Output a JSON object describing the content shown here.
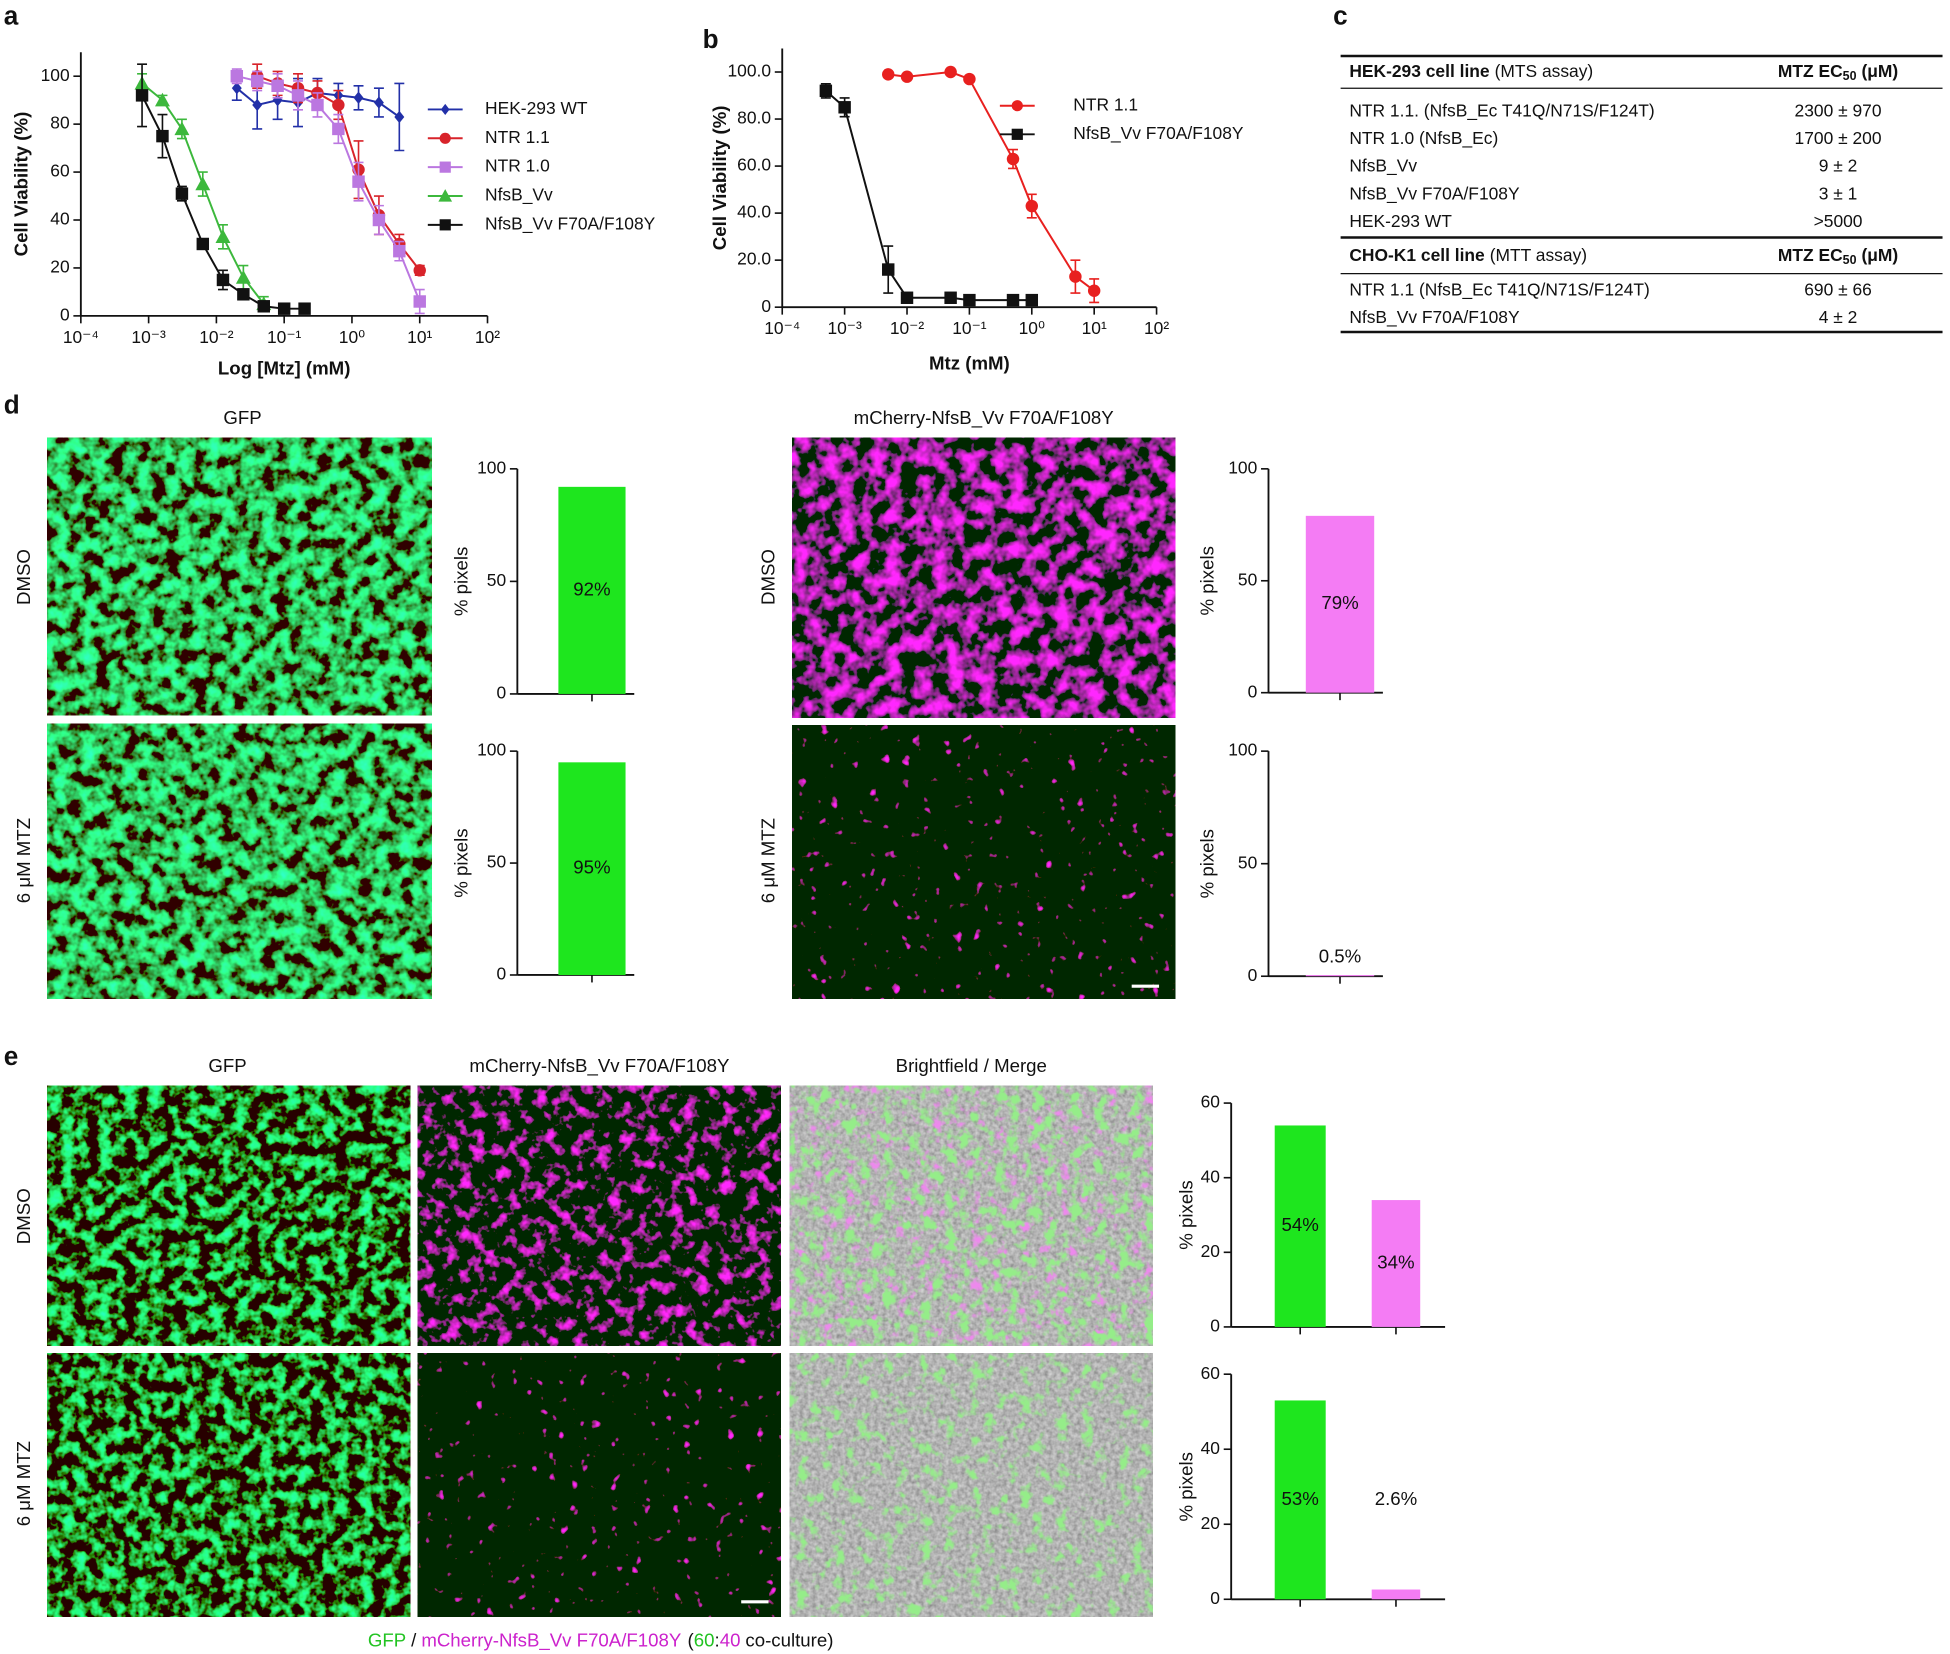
{
  "panel_labels": [
    "a",
    "b",
    "c",
    "d",
    "e"
  ],
  "chart_data": [
    {
      "type": "line",
      "x_label": "Log [Mtz] (mM)",
      "y_label": "Cell Viability (%)",
      "xscale": "log",
      "xlim": [
        0.0001,
        100
      ],
      "xticks": [
        {
          "value": 0.0001,
          "label": "10⁻⁴"
        },
        {
          "value": 0.001,
          "label": "10⁻³"
        },
        {
          "value": 0.01,
          "label": "10⁻²"
        },
        {
          "value": 0.1,
          "label": "10⁻¹"
        },
        {
          "value": 1,
          "label": "10⁰"
        },
        {
          "value": 10,
          "label": "10¹"
        },
        {
          "value": 100,
          "label": "10²"
        }
      ],
      "ylim": [
        0,
        110
      ],
      "yticks": [
        0,
        20,
        40,
        60,
        80,
        100
      ],
      "series": [
        {
          "name": "HEK-293 WT",
          "color": "#2230a8",
          "marker": "diamond",
          "x": [
            0.02,
            0.04,
            0.08,
            0.16,
            0.31,
            0.63,
            1.25,
            2.5,
            5
          ],
          "values": [
            95,
            88,
            90,
            89,
            93,
            92,
            91,
            89,
            83
          ],
          "errors": [
            5,
            10,
            8,
            10,
            6,
            5,
            5,
            6,
            14
          ]
        },
        {
          "name": "NTR 1.1",
          "color": "#d8232a",
          "marker": "circle",
          "x": [
            0.04,
            0.08,
            0.16,
            0.31,
            0.63,
            1.25,
            2.5,
            5,
            10
          ],
          "values": [
            100,
            97,
            95,
            93,
            88,
            61,
            42,
            30,
            19
          ],
          "errors": [
            5,
            5,
            6,
            5,
            6,
            12,
            8,
            4,
            2
          ]
        },
        {
          "name": "NTR 1.0",
          "color": "#bb77e0",
          "marker": "square",
          "x": [
            0.02,
            0.04,
            0.08,
            0.16,
            0.31,
            0.63,
            1.25,
            2.5,
            5,
            10
          ],
          "values": [
            100,
            98,
            96,
            92,
            88,
            78,
            56,
            40,
            27,
            6
          ],
          "errors": [
            3,
            4,
            5,
            6,
            5,
            6,
            8,
            6,
            4,
            5
          ]
        },
        {
          "name": "NfsB_Vv",
          "color": "#3cb83c",
          "marker": "triangle",
          "x": [
            0.0008,
            0.0016,
            0.0031,
            0.0063,
            0.0125,
            0.025,
            0.05
          ],
          "values": [
            97,
            90,
            78,
            55,
            33,
            16,
            5
          ],
          "errors": [
            4,
            2,
            4,
            5,
            5,
            5,
            3
          ]
        },
        {
          "name": "NfsB_Vv F70A/F108Y",
          "color": "#111111",
          "marker": "square",
          "x": [
            0.0008,
            0.0016,
            0.0031,
            0.0063,
            0.0125,
            0.025,
            0.05,
            0.1,
            0.2
          ],
          "values": [
            92,
            75,
            51,
            30,
            15,
            9,
            4,
            3,
            3
          ],
          "errors": [
            13,
            9,
            3,
            2,
            4,
            2,
            2,
            1,
            1
          ]
        }
      ]
    },
    {
      "type": "line",
      "x_label": "Mtz (mM)",
      "y_label": "Cell Viability (%)",
      "xscale": "log",
      "xlim": [
        0.0001,
        100
      ],
      "xticks": [
        {
          "value": 0.0001,
          "label": "10⁻⁴"
        },
        {
          "value": 0.001,
          "label": "10⁻³"
        },
        {
          "value": 0.01,
          "label": "10⁻²"
        },
        {
          "value": 0.1,
          "label": "10⁻¹"
        },
        {
          "value": 1,
          "label": "10⁰"
        },
        {
          "value": 10,
          "label": "10¹"
        },
        {
          "value": 100,
          "label": "10²"
        }
      ],
      "ylim": [
        0,
        110
      ],
      "yticks": [
        0,
        {
          "value": 20,
          "label": "20.0"
        },
        {
          "value": 40,
          "label": "40.0"
        },
        {
          "value": 60,
          "label": "60.0"
        },
        {
          "value": 80,
          "label": "80.0"
        },
        {
          "value": 100,
          "label": "100.0"
        }
      ],
      "series": [
        {
          "name": "NTR 1.1",
          "color": "#e8201f",
          "marker": "circle",
          "x": [
            0.005,
            0.01,
            0.05,
            0.1,
            0.5,
            1,
            5,
            10
          ],
          "values": [
            99,
            98,
            100,
            97,
            63,
            43,
            13,
            7
          ],
          "errors": [
            1,
            1,
            1,
            1,
            4,
            5,
            7,
            5
          ]
        },
        {
          "name": "NfsB_Vv F70A/F108Y",
          "color": "#111111",
          "marker": "square",
          "x": [
            0.0005,
            0.001,
            0.005,
            0.01,
            0.05,
            0.1,
            0.5,
            1
          ],
          "values": [
            92,
            85,
            16,
            4,
            4,
            3,
            3,
            3
          ],
          "errors": [
            3,
            4,
            10,
            2,
            1,
            2,
            2,
            2
          ]
        }
      ]
    },
    {
      "type": "bar",
      "y_label": "% pixels",
      "categories": [
        null
      ],
      "values": [
        92
      ],
      "value_labels": [
        "92%"
      ],
      "colors": [
        "#1ee61e"
      ],
      "ylim": [
        0,
        100
      ],
      "yticks": [
        0,
        50,
        100
      ]
    },
    {
      "type": "bar",
      "y_label": "% pixels",
      "categories": [
        null
      ],
      "values": [
        95
      ],
      "value_labels": [
        "95%"
      ],
      "colors": [
        "#1ee61e"
      ],
      "ylim": [
        0,
        100
      ],
      "yticks": [
        0,
        50,
        100
      ]
    },
    {
      "type": "bar",
      "y_label": "% pixels",
      "categories": [
        null
      ],
      "values": [
        79
      ],
      "value_labels": [
        "79%"
      ],
      "colors": [
        "#f47cf4"
      ],
      "ylim": [
        0,
        100
      ],
      "yticks": [
        0,
        50,
        100
      ]
    },
    {
      "type": "bar",
      "y_label": "% pixels",
      "categories": [
        null
      ],
      "values": [
        0.5
      ],
      "value_labels": [
        "0.5%"
      ],
      "colors": [
        "#f47cf4"
      ],
      "ylim": [
        0,
        100
      ],
      "yticks": [
        0,
        50,
        100
      ]
    },
    {
      "type": "bar",
      "y_label": "% pixels",
      "categories": [
        null,
        null
      ],
      "values": [
        54,
        34
      ],
      "value_labels": [
        "54%",
        "34%"
      ],
      "colors": [
        "#1ee61e",
        "#f47cf4"
      ],
      "ylim": [
        0,
        60
      ],
      "yticks": [
        0,
        20,
        40,
        60
      ]
    },
    {
      "type": "bar",
      "y_label": "% pixels",
      "categories": [
        null,
        null
      ],
      "values": [
        53,
        2.6
      ],
      "value_labels": [
        "53%",
        "2.6%"
      ],
      "colors": [
        "#1ee61e",
        "#f47cf4"
      ],
      "ylim": [
        0,
        60
      ],
      "yticks": [
        0,
        20,
        40,
        60
      ]
    }
  ],
  "table": {
    "header": [
      "MTZ EC",
      "50",
      "(μM)"
    ],
    "sections": [
      {
        "title": "HEK-293 cell line",
        "subtitle": "(MTS assay)",
        "rows": [
          [
            "NTR 1.1. (NfsB_Ec T41Q/N71S/F124T)",
            "2300 ± 970"
          ],
          [
            "NTR 1.0 (NfsB_Ec)",
            "1700 ± 200"
          ],
          [
            "NfsB_Vv",
            "9 ± 2"
          ],
          [
            "NfsB_Vv F70A/F108Y",
            "3 ± 1"
          ],
          [
            "HEK-293 WT",
            ">5000"
          ]
        ]
      },
      {
        "title": "CHO-K1 cell line",
        "subtitle": "(MTT assay)",
        "rows": [
          [
            "NTR 1.1 (NfsB_Ec T41Q/N71S/F124T)",
            "690 ± 66"
          ],
          [
            "NfsB_Vv F70A/F108Y",
            "4 ± 2"
          ]
        ]
      }
    ]
  },
  "image_labels": {
    "gfp": "GFP",
    "mcherry": "mCherry-NfsB_Vv F70A/F108Y",
    "merge": "Brightfield  / Merge",
    "dmso": "DMSO",
    "mtz": "6 μM MTZ"
  },
  "caption": [
    "GFP",
    "/",
    "mCherry-NfsB_Vv F70A/F108Y",
    "(",
    "60",
    ":",
    "40",
    "co-culture)"
  ]
}
